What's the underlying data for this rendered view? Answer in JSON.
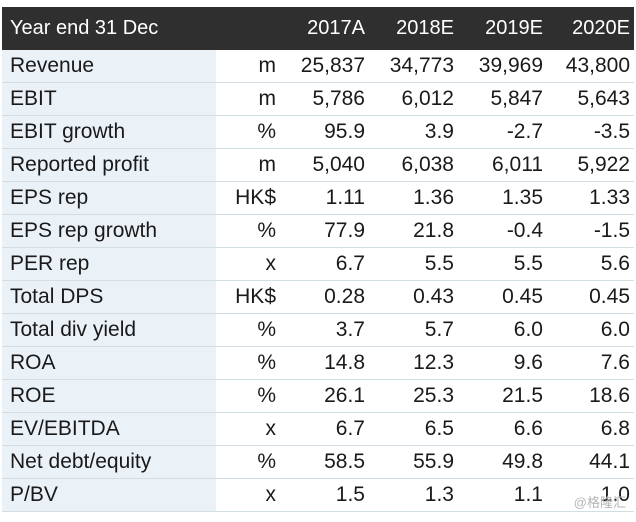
{
  "header": {
    "label": "Year end 31 Dec",
    "years": [
      "2017A",
      "2018E",
      "2019E",
      "2020E"
    ]
  },
  "rows": [
    {
      "label": "Revenue",
      "unit": "m",
      "values": [
        "25,837",
        "34,773",
        "39,969",
        "43,800"
      ]
    },
    {
      "label": "EBIT",
      "unit": "m",
      "values": [
        "5,786",
        "6,012",
        "5,847",
        "5,643"
      ]
    },
    {
      "label": "EBIT growth",
      "unit": "%",
      "values": [
        "95.9",
        "3.9",
        "-2.7",
        "-3.5"
      ]
    },
    {
      "label": "Reported profit",
      "unit": "m",
      "values": [
        "5,040",
        "6,038",
        "6,011",
        "5,922"
      ]
    },
    {
      "label": "EPS rep",
      "unit": "HK$",
      "values": [
        "1.11",
        "1.36",
        "1.35",
        "1.33"
      ]
    },
    {
      "label": "EPS rep growth",
      "unit": "%",
      "values": [
        "77.9",
        "21.8",
        "-0.4",
        "-1.5"
      ]
    },
    {
      "label": "PER rep",
      "unit": "x",
      "values": [
        "6.7",
        "5.5",
        "5.5",
        "5.6"
      ]
    },
    {
      "label": "Total DPS",
      "unit": "HK$",
      "values": [
        "0.28",
        "0.43",
        "0.45",
        "0.45"
      ]
    },
    {
      "label": "Total div yield",
      "unit": "%",
      "values": [
        "3.7",
        "5.7",
        "6.0",
        "6.0"
      ]
    },
    {
      "label": "ROA",
      "unit": "%",
      "values": [
        "14.8",
        "12.3",
        "9.6",
        "7.6"
      ]
    },
    {
      "label": "ROE",
      "unit": "%",
      "values": [
        "26.1",
        "25.3",
        "21.5",
        "18.6"
      ]
    },
    {
      "label": "EV/EBITDA",
      "unit": "x",
      "values": [
        "6.7",
        "6.5",
        "6.6",
        "6.8"
      ]
    },
    {
      "label": "Net debt/equity",
      "unit": "%",
      "values": [
        "58.5",
        "55.9",
        "49.8",
        "44.1"
      ]
    },
    {
      "label": "P/BV",
      "unit": "x",
      "values": [
        "1.5",
        "1.3",
        "1.1",
        "1.0"
      ]
    }
  ],
  "watermark": "@格隆汇",
  "colors": {
    "header_bg": "#2f2f2f",
    "label_bg": "#eaf2f8",
    "row_divider": "#d3dde4"
  }
}
